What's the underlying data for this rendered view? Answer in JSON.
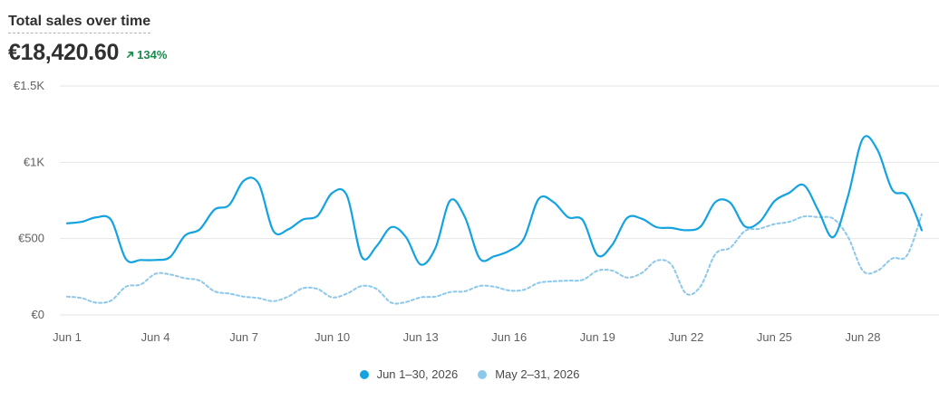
{
  "header": {
    "title": "Total sales over time",
    "total": "€18,420.60",
    "change": "134%",
    "change_icon": "arrow-up-right-icon"
  },
  "colors": {
    "current": "#13a3e0",
    "previous": "#8cc8ea",
    "grid": "#e6e6e6",
    "positive": "#1a8a4c"
  },
  "legend": [
    {
      "label": "Jun 1–30, 2026",
      "color": "#13a3e0"
    },
    {
      "label": "May 2–31, 2026",
      "color": "#8cc8ea"
    }
  ],
  "chart_data": {
    "type": "line",
    "y_ticks": [
      {
        "value": 0,
        "label": "€0"
      },
      {
        "value": 500,
        "label": "€500"
      },
      {
        "value": 1000,
        "label": "€1K"
      },
      {
        "value": 1500,
        "label": "€1.5K"
      }
    ],
    "ylim": [
      0,
      1500
    ],
    "x_ticks": [
      {
        "day": 1,
        "label": "Jun 1"
      },
      {
        "day": 4,
        "label": "Jun 4"
      },
      {
        "day": 7,
        "label": "Jun 7"
      },
      {
        "day": 10,
        "label": "Jun 10"
      },
      {
        "day": 13,
        "label": "Jun 13"
      },
      {
        "day": 16,
        "label": "Jun 16"
      },
      {
        "day": 19,
        "label": "Jun 19"
      },
      {
        "day": 22,
        "label": "Jun 22"
      },
      {
        "day": 25,
        "label": "Jun 25"
      },
      {
        "day": 28,
        "label": "Jun 28"
      }
    ],
    "xlim": [
      1,
      30
    ],
    "grid": true,
    "series": [
      {
        "name": "Jun 1–30, 2026",
        "style": "solid",
        "points": [
          [
            1,
            600
          ],
          [
            1.5,
            610
          ],
          [
            2,
            640
          ],
          [
            2.5,
            620
          ],
          [
            3,
            365
          ],
          [
            3.5,
            360
          ],
          [
            4,
            360
          ],
          [
            4.5,
            380
          ],
          [
            5,
            520
          ],
          [
            5.5,
            560
          ],
          [
            6,
            690
          ],
          [
            6.5,
            720
          ],
          [
            7,
            880
          ],
          [
            7.5,
            860
          ],
          [
            8,
            550
          ],
          [
            8.5,
            560
          ],
          [
            9,
            625
          ],
          [
            9.5,
            650
          ],
          [
            10,
            800
          ],
          [
            10.5,
            780
          ],
          [
            11,
            380
          ],
          [
            11.5,
            450
          ],
          [
            12,
            575
          ],
          [
            12.5,
            510
          ],
          [
            13,
            330
          ],
          [
            13.5,
            440
          ],
          [
            14,
            750
          ],
          [
            14.5,
            640
          ],
          [
            15,
            370
          ],
          [
            15.5,
            385
          ],
          [
            16,
            420
          ],
          [
            16.5,
            500
          ],
          [
            17,
            760
          ],
          [
            17.5,
            740
          ],
          [
            18,
            640
          ],
          [
            18.5,
            620
          ],
          [
            19,
            390
          ],
          [
            19.5,
            460
          ],
          [
            20,
            635
          ],
          [
            20.5,
            630
          ],
          [
            21,
            575
          ],
          [
            21.5,
            570
          ],
          [
            22,
            555
          ],
          [
            22.5,
            580
          ],
          [
            23,
            740
          ],
          [
            23.5,
            735
          ],
          [
            24,
            580
          ],
          [
            24.5,
            610
          ],
          [
            25,
            745
          ],
          [
            25.5,
            800
          ],
          [
            26,
            850
          ],
          [
            26.5,
            680
          ],
          [
            27,
            510
          ],
          [
            27.5,
            780
          ],
          [
            28,
            1155
          ],
          [
            28.5,
            1080
          ],
          [
            29,
            820
          ],
          [
            29.5,
            780
          ],
          [
            30,
            555
          ]
        ]
      },
      {
        "name": "May 2–31, 2026",
        "style": "dashed",
        "points": [
          [
            1,
            120
          ],
          [
            1.5,
            110
          ],
          [
            2,
            80
          ],
          [
            2.5,
            95
          ],
          [
            3,
            185
          ],
          [
            3.5,
            200
          ],
          [
            4,
            270
          ],
          [
            4.5,
            265
          ],
          [
            5,
            240
          ],
          [
            5.5,
            225
          ],
          [
            6,
            155
          ],
          [
            6.5,
            140
          ],
          [
            7,
            120
          ],
          [
            7.5,
            110
          ],
          [
            8,
            90
          ],
          [
            8.5,
            120
          ],
          [
            9,
            175
          ],
          [
            9.5,
            170
          ],
          [
            10,
            115
          ],
          [
            10.5,
            140
          ],
          [
            11,
            190
          ],
          [
            11.5,
            170
          ],
          [
            12,
            80
          ],
          [
            12.5,
            85
          ],
          [
            13,
            115
          ],
          [
            13.5,
            120
          ],
          [
            14,
            150
          ],
          [
            14.5,
            155
          ],
          [
            15,
            190
          ],
          [
            15.5,
            185
          ],
          [
            16,
            160
          ],
          [
            16.5,
            165
          ],
          [
            17,
            210
          ],
          [
            17.5,
            220
          ],
          [
            18,
            225
          ],
          [
            18.5,
            230
          ],
          [
            19,
            290
          ],
          [
            19.5,
            290
          ],
          [
            20,
            245
          ],
          [
            20.5,
            275
          ],
          [
            21,
            355
          ],
          [
            21.5,
            330
          ],
          [
            22,
            140
          ],
          [
            22.5,
            190
          ],
          [
            23,
            400
          ],
          [
            23.5,
            440
          ],
          [
            24,
            550
          ],
          [
            24.5,
            565
          ],
          [
            25,
            595
          ],
          [
            25.5,
            610
          ],
          [
            26,
            645
          ],
          [
            26.5,
            640
          ],
          [
            27,
            630
          ],
          [
            27.5,
            510
          ],
          [
            28,
            290
          ],
          [
            28.5,
            290
          ],
          [
            29,
            370
          ],
          [
            29.5,
            390
          ],
          [
            30,
            660
          ]
        ]
      }
    ]
  }
}
